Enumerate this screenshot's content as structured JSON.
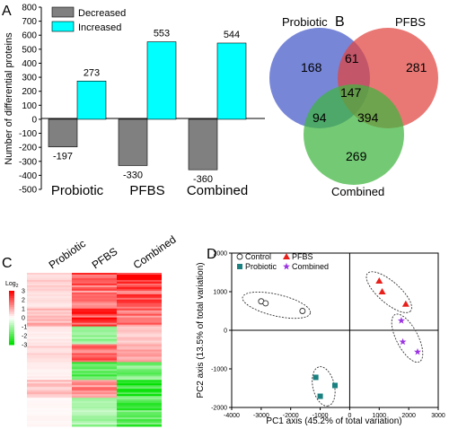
{
  "panels": {
    "a": {
      "letter": "A",
      "chart_data": {
        "type": "bar",
        "ylabel": "Number of differential proteins",
        "ylim": [
          -500,
          800
        ],
        "yticks": [
          800,
          700,
          600,
          500,
          400,
          300,
          200,
          100,
          0,
          -100,
          -200,
          -300,
          -400,
          -500
        ],
        "ytick_labels": [
          "800",
          "700",
          "600",
          "500",
          "400",
          "300",
          "200",
          "100",
          "0",
          "-100",
          "-200",
          "-300",
          "-400",
          "-500"
        ],
        "categories": [
          "Probiotic",
          "PFBS",
          "Combined"
        ],
        "series": [
          {
            "name": "Decreased",
            "color": "#808080",
            "values": [
              -197,
              -330,
              -360
            ],
            "labels": [
              "-197",
              "-330",
              "-360"
            ]
          },
          {
            "name": "Increased",
            "color": "#00ffff",
            "values": [
              273,
              553,
              544
            ],
            "labels": [
              "273",
              "553",
              "544"
            ]
          }
        ],
        "legend_position": "top-center"
      }
    },
    "b": {
      "letter": "B",
      "chart_data": {
        "type": "venn",
        "sets": [
          {
            "name": "Probiotic",
            "color": "#4a5ec9"
          },
          {
            "name": "PFBS",
            "color": "#e0443f"
          },
          {
            "name": "Combined",
            "color": "#3fb63f"
          }
        ],
        "regions": [
          {
            "region": "Probiotic only",
            "value": 168
          },
          {
            "region": "PFBS only",
            "value": 281
          },
          {
            "region": "Combined only",
            "value": 269
          },
          {
            "region": "Probiotic & PFBS",
            "value": 61
          },
          {
            "region": "Probiotic & Combined",
            "value": 94
          },
          {
            "region": "PFBS & Combined",
            "value": 394
          },
          {
            "region": "All three",
            "value": 147
          }
        ]
      }
    },
    "c": {
      "letter": "C",
      "chart_data": {
        "type": "heatmap",
        "columns": [
          "Probiotic",
          "PFBS",
          "Combined"
        ],
        "scale_title": "Log",
        "scale_subscript": "2",
        "scale_ticks": [
          3,
          2,
          1,
          0,
          -1,
          -2,
          -3
        ],
        "scale_tick_labels": [
          "3",
          "2",
          "1",
          "0",
          "-1",
          "-2",
          "-3"
        ],
        "colors": {
          "high": "#ff0000",
          "mid": "#ffffff",
          "low": "#00e000"
        },
        "clusters": [
          [
            0.55,
            2.0,
            2.6
          ],
          [
            0.35,
            1.6,
            2.1
          ],
          [
            0.9,
            2.4,
            1.7
          ],
          [
            0.25,
            -1.3,
            0.6
          ],
          [
            0.5,
            1.9,
            1.0
          ],
          [
            0.2,
            -2.2,
            -1.6
          ],
          [
            0.7,
            1.4,
            -2.4
          ],
          [
            0.1,
            -1.1,
            -2.0
          ]
        ]
      }
    },
    "d": {
      "letter": "D",
      "chart_data": {
        "type": "scatter",
        "xlabel": "PC1 axis (45.2% of total variation)",
        "ylabel": "PC2 axis (13.5% of total variation)",
        "xlim": [
          -4000,
          3000
        ],
        "ylim": [
          -2000,
          2000
        ],
        "xticks": [
          -4000,
          -3000,
          -2000,
          -1000,
          0,
          1000,
          2000,
          3000
        ],
        "xtick_labels": [
          "-4000",
          "-3000",
          "-2000",
          "-1000",
          "0",
          "1000",
          "2000",
          "3000"
        ],
        "yticks": [
          2000,
          1000,
          0,
          -1000,
          -2000
        ],
        "ytick_labels": [
          "2000",
          "1000",
          "0",
          "-1000",
          "-2000"
        ],
        "series": [
          {
            "name": "Control",
            "marker": "open-circle",
            "color": "#333333",
            "x": [
              -3000,
              -2850,
              -1600
            ],
            "y": [
              750,
              700,
              500
            ]
          },
          {
            "name": "PFBS",
            "marker": "triangle",
            "color": "#e8201c",
            "x": [
              1000,
              1100,
              1900
            ],
            "y": [
              1280,
              1000,
              680
            ]
          },
          {
            "name": "Probiotic",
            "marker": "square",
            "color": "#1a8080",
            "x": [
              -1150,
              -500,
              -1000
            ],
            "y": [
              -1220,
              -1430,
              -1710
            ]
          },
          {
            "name": "Combined",
            "marker": "star",
            "color": "#9a33e0",
            "x": [
              1750,
              1800,
              2300
            ],
            "y": [
              250,
              -300,
              -560
            ]
          }
        ],
        "legend_position": "top-left"
      }
    }
  }
}
